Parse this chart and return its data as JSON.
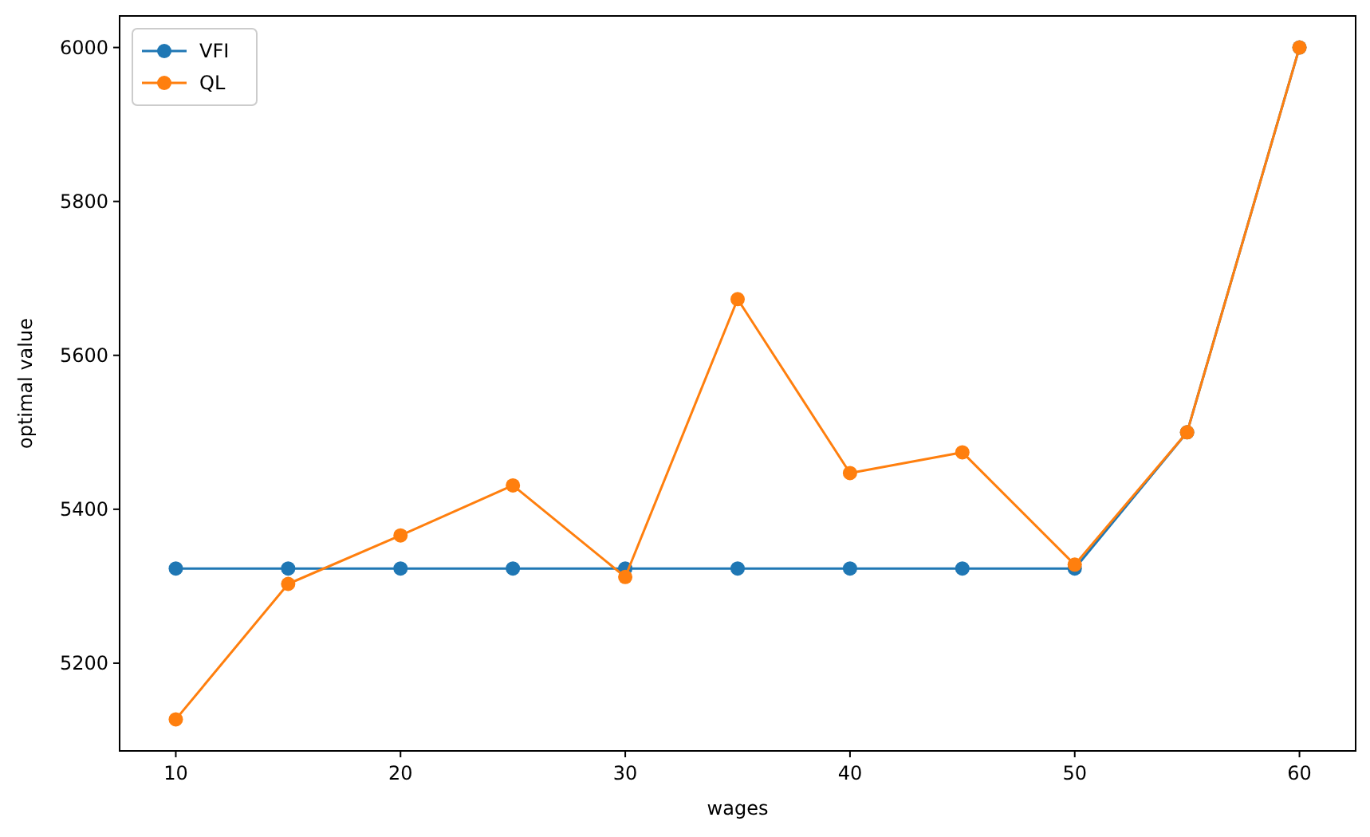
{
  "chart_data": {
    "type": "line",
    "xlabel": "wages",
    "ylabel": "optimal value",
    "x": [
      10,
      15,
      20,
      25,
      30,
      35,
      40,
      45,
      50,
      55,
      60
    ],
    "series": [
      {
        "name": "VFI",
        "color": "#1f77b4",
        "values": [
          5323,
          5323,
          5323,
          5323,
          5323,
          5323,
          5323,
          5323,
          5323,
          5500,
          6000
        ]
      },
      {
        "name": "QL",
        "color": "#ff7f0e",
        "values": [
          5127,
          5303,
          5366,
          5431,
          5312,
          5673,
          5447,
          5474,
          5328,
          5500,
          6000
        ]
      }
    ],
    "xlim": [
      7.5,
      62.5
    ],
    "ylim": [
      5086,
      6041
    ],
    "xticks": [
      10,
      20,
      30,
      40,
      50,
      60
    ],
    "yticks": [
      5200,
      5400,
      5600,
      5800,
      6000
    ],
    "legend": "top left",
    "marker": "circle",
    "line_style": "solid",
    "grid": false
  }
}
